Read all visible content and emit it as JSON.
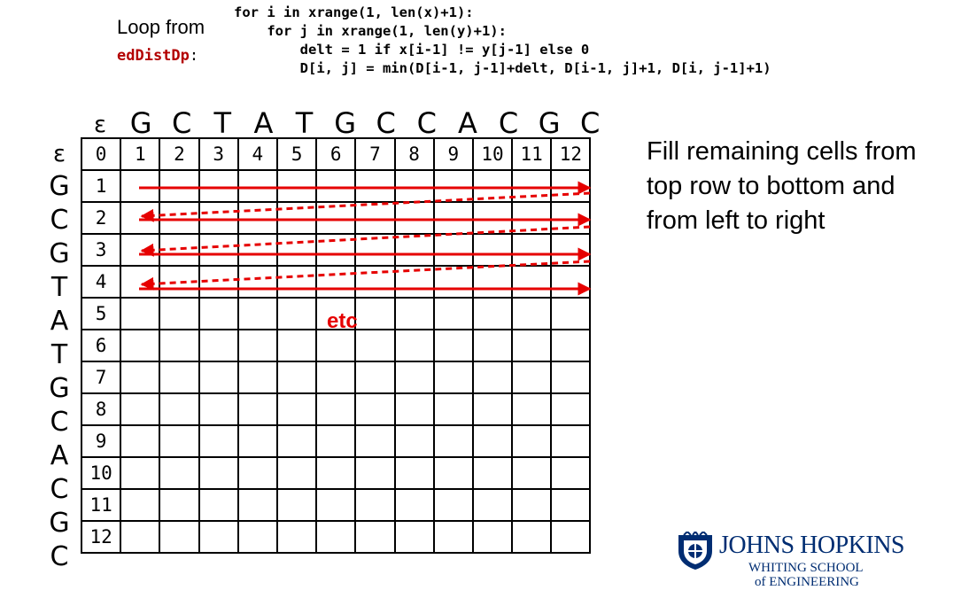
{
  "header": {
    "loop_label": "Loop from",
    "function_name": "edDistDp",
    "function_suffix": ":"
  },
  "code_lines": [
    "for i in xrange(1, len(x)+1):",
    "    for j in xrange(1, len(y)+1):",
    "        delt = 1 if x[i-1] != y[j-1] else 0",
    "        D[i, j] = min(D[i-1, j-1]+delt, D[i-1, j]+1, D[i, j-1]+1)"
  ],
  "column_labels": [
    "ε",
    "G",
    "C",
    "T",
    "A",
    "T",
    "G",
    "C",
    "C",
    "A",
    "C",
    "G",
    "C"
  ],
  "row_labels": [
    "ε",
    "G",
    "C",
    "G",
    "T",
    "A",
    "T",
    "G",
    "C",
    "A",
    "C",
    "G",
    "C"
  ],
  "top_row_indices": [
    "0",
    "1",
    "2",
    "3",
    "4",
    "5",
    "6",
    "7",
    "8",
    "9",
    "10",
    "11",
    "12"
  ],
  "left_col_indices": [
    "0",
    "1",
    "2",
    "3",
    "4",
    "5",
    "6",
    "7",
    "8",
    "9",
    "10",
    "11",
    "12"
  ],
  "etc_label": "etc",
  "fill_note_lines": [
    "Fill remaining cells from",
    "top row to bottom and",
    "from left to right"
  ],
  "arrow_color": "#e60000",
  "logo": {
    "title": "JOHNS HOPKINS",
    "sub1": "WHITING SCHOOL",
    "sub2": "of ENGINEERING"
  }
}
